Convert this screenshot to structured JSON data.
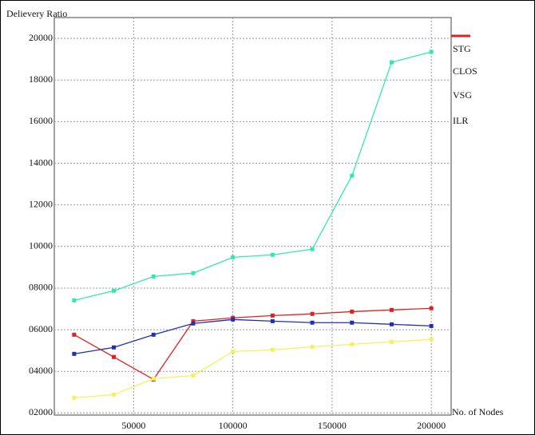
{
  "chart_data": {
    "type": "line",
    "ylabel": "Delievery Ratio",
    "xlabel": "No. of Nodes",
    "x": [
      20000,
      40000,
      60000,
      80000,
      100000,
      120000,
      140000,
      160000,
      180000,
      200000
    ],
    "series": [
      {
        "name": "STG",
        "color": "#33e8b0",
        "values": [
          7410,
          7870,
          8560,
          8720,
          9480,
          9600,
          9870,
          13400,
          18850,
          19350
        ]
      },
      {
        "name": "CLOS",
        "color": "#e02020",
        "values": [
          5760,
          4690,
          3610,
          6410,
          6570,
          6680,
          6760,
          6870,
          6950,
          7030
        ]
      },
      {
        "name": "VSG",
        "color": "#2030b0",
        "values": [
          4840,
          5150,
          5760,
          6300,
          6490,
          6410,
          6340,
          6340,
          6260,
          6180
        ]
      },
      {
        "name": "ILR",
        "color": "#f5f060",
        "values": [
          2730,
          2880,
          3650,
          3800,
          4950,
          5030,
          5180,
          5300,
          5420,
          5530
        ]
      }
    ],
    "xlim": [
      10000,
      210000
    ],
    "ylim": [
      1900,
      21000
    ],
    "xticks": [
      50000,
      100000,
      150000,
      200000
    ],
    "yticks": [
      {
        "value": 2000,
        "label": "02000"
      },
      {
        "value": 4000,
        "label": "04000"
      },
      {
        "value": 6000,
        "label": "06000"
      },
      {
        "value": 8000,
        "label": "08000"
      },
      {
        "value": 10000,
        "label": "10000"
      },
      {
        "value": 12000,
        "label": "12000"
      },
      {
        "value": 14000,
        "label": "14000"
      },
      {
        "value": 16000,
        "label": "16000"
      },
      {
        "value": 18000,
        "label": "18000"
      },
      {
        "value": 20000,
        "label": "20000"
      }
    ],
    "grid": true
  }
}
